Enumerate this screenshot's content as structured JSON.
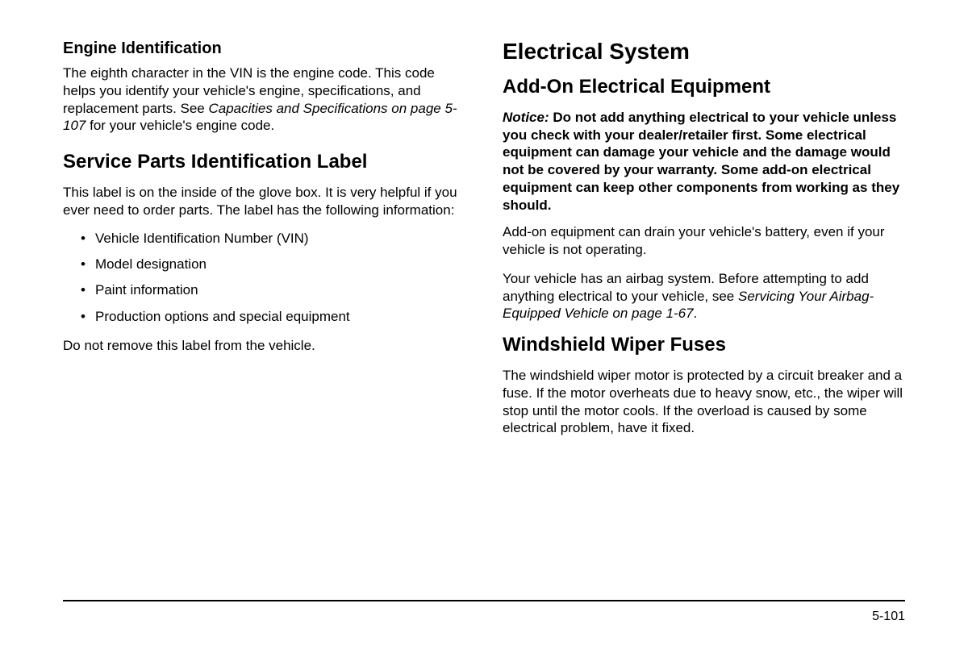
{
  "left": {
    "engine_id": {
      "heading": "Engine Identification",
      "p1a": "The eighth character in the VIN is the engine code. This code helps you identify your vehicle's engine, specifications, and replacement parts. See ",
      "p1_ref": "Capacities and Specifications on page 5-107",
      "p1b": " for your vehicle's engine code."
    },
    "service_parts": {
      "heading": "Service Parts Identification Label",
      "p1": "This label is on the inside of the glove box. It is very helpful if you ever need to order parts. The label has the following information:",
      "bullets": [
        "Vehicle Identification Number (VIN)",
        "Model designation",
        "Paint information",
        "Production options and special equipment"
      ],
      "p2": "Do not remove this label from the vehicle."
    }
  },
  "right": {
    "electrical_system": {
      "heading": "Electrical System"
    },
    "add_on": {
      "heading": "Add-On Electrical Equipment",
      "notice_label": "Notice:",
      "notice_text": "  Do not add anything electrical to your vehicle unless you check with your dealer/retailer first. Some electrical equipment can damage your vehicle and the damage would not be covered by your warranty. Some add-on electrical equipment can keep other components from working as they should.",
      "p1": "Add-on equipment can drain your vehicle's battery, even if your vehicle is not operating.",
      "p2a": "Your vehicle has an airbag system. Before attempting to add anything electrical to your vehicle, see ",
      "p2_ref": "Servicing Your Airbag-Equipped Vehicle on page 1-67",
      "p2b": "."
    },
    "wiper_fuses": {
      "heading": "Windshield Wiper Fuses",
      "p1": "The windshield wiper motor is protected by a circuit breaker and a fuse. If the motor overheats due to heavy snow, etc., the wiper will stop until the motor cools. If the overload is caused by some electrical problem, have it fixed."
    }
  },
  "page_number": "5-101",
  "colors": {
    "text": "#000000",
    "background": "#ffffff",
    "rule": "#000000"
  },
  "typography": {
    "body_fontsize_pt": 13,
    "h1_fontsize_pt": 21,
    "h2_fontsize_pt": 18,
    "h3_fontsize_pt": 15,
    "font_family": "Arial/Helvetica"
  }
}
